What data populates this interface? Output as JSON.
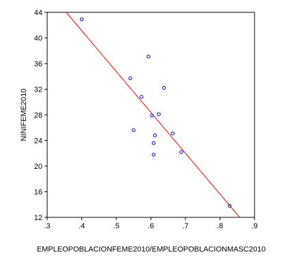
{
  "chart_data": {
    "type": "scatter",
    "title": "",
    "xlabel": "EMPLEOPOBLACIONFEME2010/EMPLEOPOBLACIONMASC2010",
    "ylabel": "NINIFEME2010",
    "xlim": [
      0.3,
      0.9
    ],
    "ylim": [
      12,
      44
    ],
    "x_ticks": [
      0.3,
      0.4,
      0.5,
      0.6,
      0.7,
      0.8,
      0.9
    ],
    "x_tick_labels": [
      ".3",
      ".4",
      ".5",
      ".6",
      ".7",
      ".8",
      ".9"
    ],
    "y_ticks": [
      12,
      16,
      20,
      24,
      28,
      32,
      36,
      40,
      44
    ],
    "y_tick_labels": [
      "12",
      "16",
      "20",
      "24",
      "28",
      "32",
      "36",
      "40",
      "44"
    ],
    "grid": false,
    "point_color": "#0000cc",
    "fit_line_color": "#ff0000",
    "points": [
      {
        "x": 0.4,
        "y": 42.9
      },
      {
        "x": 0.54,
        "y": 33.7
      },
      {
        "x": 0.55,
        "y": 25.6
      },
      {
        "x": 0.573,
        "y": 30.8
      },
      {
        "x": 0.593,
        "y": 37.1
      },
      {
        "x": 0.603,
        "y": 27.9
      },
      {
        "x": 0.608,
        "y": 21.8
      },
      {
        "x": 0.608,
        "y": 23.6
      },
      {
        "x": 0.612,
        "y": 24.8
      },
      {
        "x": 0.623,
        "y": 28.1
      },
      {
        "x": 0.638,
        "y": 32.2
      },
      {
        "x": 0.663,
        "y": 25.1
      },
      {
        "x": 0.688,
        "y": 22.2
      },
      {
        "x": 0.828,
        "y": 13.8
      }
    ],
    "fit_line": {
      "x": [
        0.355,
        0.857
      ],
      "y": [
        44,
        12
      ]
    }
  }
}
